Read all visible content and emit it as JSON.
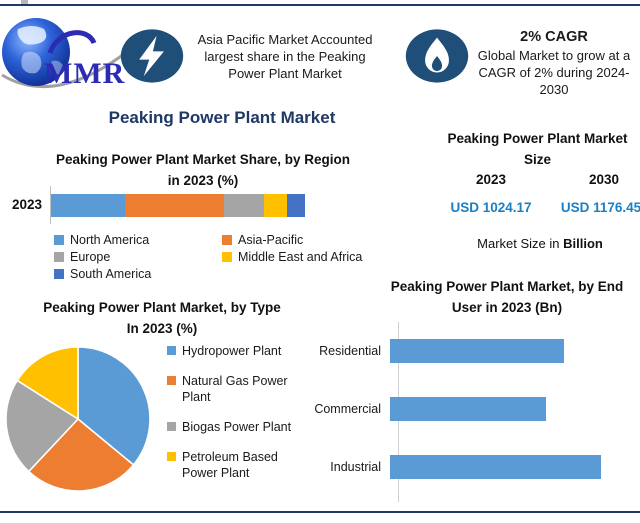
{
  "header": {
    "logo_text": "MMR",
    "highlight1": {
      "lines": [
        "Asia Pacific Market Accounted",
        "largest share in the Peaking",
        "Power Plant Market"
      ]
    },
    "highlight2": {
      "title": "2% CAGR",
      "lines": [
        "Global Market to grow at a",
        "CAGR of 2% during 2024-2030"
      ]
    }
  },
  "main_title": "Peaking Power Plant Market",
  "colors": {
    "navy_border": "#1F3864",
    "title_navy": "#1F3864",
    "icon_circle_blue": "#1F4E79",
    "value_blue": "#1C7EC5",
    "bar_blue": "#5B9BD5",
    "orange": "#ED7D31",
    "gray": "#A5A5A5",
    "yellow": "#FFC000",
    "dark_blue": "#4472C4",
    "logo_blue": "#2B2BB4"
  },
  "chart_data": [
    {
      "id": "region-share",
      "type": "bar",
      "subtype": "stacked-horizontal",
      "title": "Peaking Power Plant Market Share, by Region in 2023 (%)",
      "title_lines": [
        "Peaking Power Plant Market Share, by Region",
        "in 2023 (%)"
      ],
      "categories": [
        "2023"
      ],
      "unit": "%",
      "xlim": [
        0,
        100
      ],
      "grid": false,
      "legend_position": "bottom",
      "series": [
        {
          "name": "North America",
          "color": "#5B9BD5",
          "values": [
            29
          ]
        },
        {
          "name": "Asia-Pacific",
          "color": "#ED7D31",
          "values": [
            39
          ]
        },
        {
          "name": "Europe",
          "color": "#A5A5A5",
          "values": [
            16
          ]
        },
        {
          "name": "Middle East and Africa",
          "color": "#FFC000",
          "values": [
            9
          ]
        },
        {
          "name": "South America",
          "color": "#4472C4",
          "values": [
            7
          ]
        }
      ]
    },
    {
      "id": "market-size",
      "type": "table",
      "title": "Peaking Power Plant Market Size",
      "title_lines": [
        "Peaking Power Plant Market",
        "Size"
      ],
      "columns": [
        "2023",
        "2030"
      ],
      "values": [
        "USD 1024.17",
        "USD 1176.45"
      ],
      "footnote_prefix": "Market Size in ",
      "footnote_bold": "Billion"
    },
    {
      "id": "by-type",
      "type": "pie",
      "title": "Peaking Power Plant Market, by Type In 2023 (%)",
      "title_lines": [
        "Peaking Power Plant Market, by Type",
        "In 2023 (%)"
      ],
      "labels": [
        "Hydropower Plant",
        "Natural Gas Power Plant",
        "Biogas Power Plant",
        "Petroleum Based Power Plant"
      ],
      "values": [
        36,
        26,
        22,
        16
      ],
      "colors": [
        "#5B9BD5",
        "#ED7D31",
        "#A5A5A5",
        "#FFC000"
      ],
      "start_angle": 0,
      "legend_position": "right"
    },
    {
      "id": "by-end-user",
      "type": "bar",
      "subtype": "horizontal",
      "title": "Peaking Power Plant Market, by End User in 2023 (Bn)",
      "title_lines": [
        "Peaking Power Plant Market, by End",
        "User in 2023 (Bn)"
      ],
      "categories": [
        "Residential",
        "Commercial",
        "Industrial"
      ],
      "values": [
        330,
        295,
        400
      ],
      "unit": "Bn",
      "color": "#5B9BD5",
      "grid": false,
      "legend_position": "none"
    }
  ]
}
